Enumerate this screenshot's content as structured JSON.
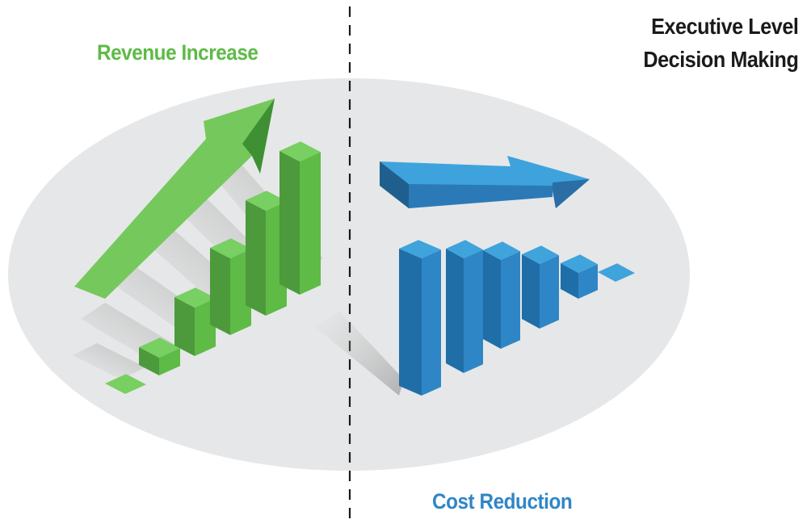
{
  "labels": {
    "revenue": "Revenue Increase",
    "cost": "Cost Reduction",
    "executive_line1": "Executive Level",
    "executive_line2": "Decision Making"
  },
  "colors": {
    "revenue_green": "#5dbb46",
    "cost_blue": "#2f86c6",
    "title_black": "#1a1a1a",
    "ellipse_grey": "#e6e7e8"
  },
  "icons": {
    "revenue_arrow": "up-trend-arrow-icon",
    "cost_arrow": "flat-trend-arrow-icon",
    "revenue_bars": "rising-bars-icon",
    "cost_bars": "declining-bars-icon"
  },
  "revenue_bar_trend": "increasing",
  "cost_bar_trend": "decreasing"
}
